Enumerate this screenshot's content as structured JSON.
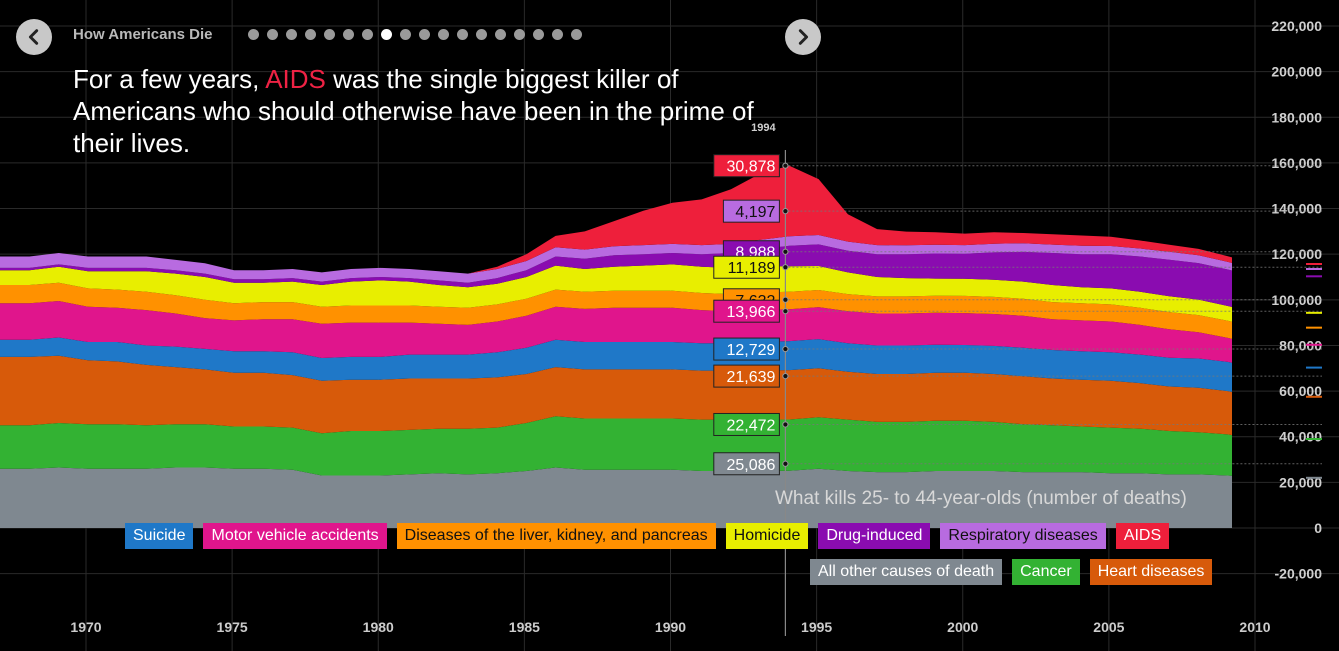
{
  "nav": {
    "story_title": "How Americans Die",
    "dot_count": 18,
    "active_dot": 7,
    "prev_label": "previous",
    "next_label": "next"
  },
  "headline": {
    "before": "For a few years, ",
    "highlight": "AIDS",
    "after": " was the single biggest killer of Americans who should otherwise have been in the prime of their lives."
  },
  "colors": {
    "background": "#000000",
    "highlight": "#ee2244"
  },
  "chart_data": {
    "type": "area",
    "stacked": true,
    "title": "What kills 25- to 44-year-olds (number of deaths)",
    "xlabel": "",
    "ylabel": "",
    "xlim": [
      1968,
      2011
    ],
    "ylim": [
      -20000,
      220000
    ],
    "x_ticks": [
      1970,
      1975,
      1980,
      1985,
      1990,
      1995,
      2000,
      2005,
      2010
    ],
    "y_ticks": [
      -20000,
      0,
      20000,
      40000,
      60000,
      80000,
      100000,
      120000,
      140000,
      160000,
      180000,
      200000,
      220000
    ],
    "y_tick_labels": [
      "-20,000",
      "0",
      "20,000",
      "40,000",
      "60,000",
      "80,000",
      "100,000",
      "120,000",
      "140,000",
      "160,000",
      "180,000",
      "200,000",
      "220,000"
    ],
    "grid": true,
    "highlight_year": 1994,
    "highlight_year_label": "1994",
    "x": [
      1968,
      1969,
      1970,
      1971,
      1972,
      1973,
      1974,
      1975,
      1976,
      1977,
      1978,
      1979,
      1980,
      1981,
      1982,
      1983,
      1984,
      1985,
      1986,
      1987,
      1988,
      1989,
      1990,
      1991,
      1992,
      1993,
      1994,
      1995,
      1996,
      1997,
      1998,
      1999,
      2000,
      2001,
      2002,
      2003,
      2004,
      2005,
      2006,
      2007,
      2008,
      2009,
      2010
    ],
    "series": [
      {
        "name": "All other causes of death",
        "color": "#7f8890",
        "text_color": "#ffffff",
        "values": [
          26000,
          26500,
          26000,
          26000,
          26000,
          26500,
          26500,
          26000,
          26000,
          25500,
          23000,
          23000,
          23000,
          23500,
          24000,
          23500,
          24000,
          25000,
          26500,
          25500,
          25500,
          25500,
          25500,
          25000,
          25000,
          25000,
          25086,
          26000,
          25000,
          24500,
          24500,
          25000,
          25000,
          25000,
          24500,
          24500,
          24500,
          24000,
          24000,
          23500,
          23500,
          23000,
          22000
        ]
      },
      {
        "name": "Cancer",
        "color": "#33b233",
        "text_color": "#ffffff",
        "values": [
          19000,
          19500,
          19500,
          19500,
          19000,
          19000,
          19000,
          18500,
          18500,
          18500,
          18500,
          19500,
          19500,
          19500,
          19500,
          20000,
          20000,
          21000,
          22500,
          22500,
          22500,
          22500,
          22500,
          22500,
          22500,
          22500,
          22472,
          22500,
          22500,
          22000,
          22000,
          22000,
          22000,
          21500,
          21000,
          20500,
          20000,
          20000,
          19500,
          19000,
          18500,
          18000,
          17000
        ]
      },
      {
        "name": "Heart diseases",
        "color": "#d75a0a",
        "text_color": "#ffffff",
        "values": [
          30000,
          29500,
          28000,
          27500,
          26500,
          25000,
          24000,
          23500,
          23500,
          23000,
          23000,
          22500,
          22500,
          22500,
          22000,
          22000,
          22000,
          21500,
          21500,
          21500,
          21500,
          21500,
          21500,
          21500,
          21500,
          21600,
          21639,
          21500,
          21000,
          21000,
          21000,
          21000,
          21000,
          21000,
          21000,
          20500,
          20500,
          20500,
          20000,
          19500,
          19500,
          19000,
          18500
        ]
      },
      {
        "name": "Suicide",
        "color": "#1f78c8",
        "text_color": "#ffffff",
        "values": [
          7500,
          8000,
          8000,
          8500,
          8500,
          9000,
          9000,
          9500,
          9500,
          10000,
          10000,
          10000,
          10000,
          10500,
          10500,
          10500,
          11000,
          11500,
          12000,
          12000,
          12000,
          12000,
          12000,
          12000,
          12000,
          12500,
          12729,
          12800,
          12500,
          12500,
          12500,
          12300,
          12200,
          12300,
          12500,
          12500,
          12500,
          12500,
          12500,
          12600,
          12800,
          12800,
          12800
        ]
      },
      {
        "name": "Motor vehicle accidents",
        "color": "#e0158c",
        "text_color": "#ffffff",
        "values": [
          16000,
          16000,
          15500,
          15000,
          15500,
          14500,
          13500,
          13500,
          14000,
          14500,
          15000,
          15000,
          15000,
          14000,
          13500,
          13000,
          13500,
          14000,
          14500,
          14500,
          15000,
          15000,
          15000,
          14500,
          14000,
          14000,
          13966,
          14000,
          14000,
          14000,
          14000,
          14000,
          14000,
          14000,
          14000,
          13500,
          13500,
          13500,
          13000,
          12500,
          11500,
          10500,
          10000
        ]
      },
      {
        "name": "Diseases of the liver, kidney, and pancreas",
        "color": "#ff9100",
        "text_color": "#111111",
        "values": [
          8000,
          8000,
          8000,
          8000,
          8000,
          8000,
          8000,
          7500,
          7500,
          7500,
          7500,
          7500,
          7500,
          7500,
          7500,
          7500,
          7500,
          7500,
          7500,
          7500,
          7500,
          7500,
          7500,
          7500,
          7500,
          7600,
          7632,
          7500,
          7500,
          7500,
          7500,
          7500,
          7500,
          7500,
          7500,
          7500,
          7500,
          7500,
          7500,
          7500,
          7500,
          7500,
          7500
        ]
      },
      {
        "name": "Homicide",
        "color": "#e8ee00",
        "text_color": "#111111",
        "values": [
          6500,
          7000,
          7500,
          8000,
          9000,
          9500,
          10000,
          9000,
          8500,
          9000,
          9500,
          10500,
          11000,
          10500,
          9500,
          9000,
          9000,
          9500,
          10500,
          10000,
          10500,
          11000,
          11500,
          11500,
          11500,
          11500,
          11189,
          10500,
          9500,
          8500,
          8000,
          7500,
          7500,
          7500,
          7500,
          7500,
          7000,
          7000,
          7000,
          7000,
          6800,
          6500,
          6500
        ]
      },
      {
        "name": "Drug-induced",
        "color": "#8a0cb0",
        "text_color": "#ffffff",
        "values": [
          1000,
          1000,
          1500,
          1500,
          1500,
          1500,
          1500,
          1500,
          1500,
          1500,
          1500,
          1500,
          1500,
          1500,
          2000,
          2000,
          2500,
          3000,
          4000,
          4500,
          5000,
          5000,
          5000,
          5500,
          6500,
          7500,
          8988,
          9500,
          9500,
          10000,
          10500,
          11000,
          11000,
          12000,
          13000,
          14000,
          14500,
          15000,
          15500,
          16000,
          16000,
          16000,
          16000
        ]
      },
      {
        "name": "Respiratory diseases",
        "color": "#b86be0",
        "text_color": "#111111",
        "values": [
          5000,
          5000,
          5000,
          5000,
          5000,
          4500,
          4500,
          4000,
          4000,
          4000,
          4000,
          4000,
          4000,
          4000,
          4000,
          4000,
          4000,
          4000,
          4000,
          4000,
          4000,
          4000,
          4000,
          4000,
          4000,
          4100,
          4197,
          4100,
          4000,
          4000,
          3900,
          3800,
          3800,
          3800,
          3800,
          3700,
          3700,
          3600,
          3500,
          3500,
          3400,
          3300,
          3200
        ]
      },
      {
        "name": "AIDS",
        "color": "#ee1f3b",
        "text_color": "#ffffff",
        "values": [
          0,
          0,
          0,
          0,
          0,
          0,
          0,
          0,
          0,
          0,
          0,
          0,
          0,
          0,
          0,
          0,
          1000,
          3000,
          5000,
          8000,
          11000,
          15000,
          18000,
          20000,
          24000,
          29000,
          30878,
          24500,
          12000,
          7000,
          6000,
          5500,
          5000,
          5000,
          4500,
          4500,
          4500,
          4000,
          3500,
          3000,
          2800,
          2500,
          2200
        ]
      }
    ],
    "highlight_labels": [
      {
        "series": "AIDS",
        "value": "30,878"
      },
      {
        "series": "Respiratory diseases",
        "value": "4,197"
      },
      {
        "series": "Drug-induced",
        "value": "8,988"
      },
      {
        "series": "Homicide",
        "value": "11,189"
      },
      {
        "series": "Diseases of the liver, kidney, and pancreas",
        "value": "7,632"
      },
      {
        "series": "Motor vehicle accidents",
        "value": "13,966"
      },
      {
        "series": "Suicide",
        "value": "12,729"
      },
      {
        "series": "Heart diseases",
        "value": "21,639"
      },
      {
        "series": "Cancer",
        "value": "22,472"
      },
      {
        "series": "All other causes of death",
        "value": "25,086"
      }
    ],
    "legend": {
      "placement": "bottom",
      "row1": [
        "Suicide",
        "Motor vehicle accidents",
        "Diseases of the liver, kidney, and pancreas",
        "Homicide",
        "Drug-induced",
        "Respiratory diseases",
        "AIDS"
      ],
      "row2": [
        "All other causes of death",
        "Cancer",
        "Heart diseases"
      ]
    }
  }
}
